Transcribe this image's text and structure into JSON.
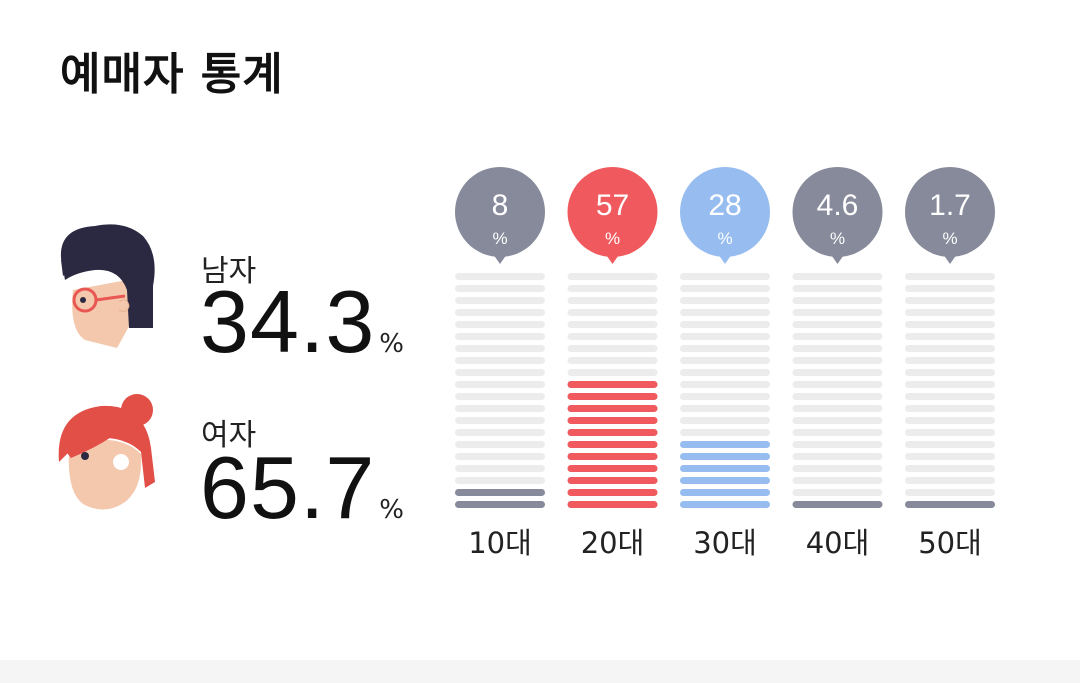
{
  "title": "예매자 통계",
  "gender": {
    "male": {
      "label": "남자",
      "value": "34.3",
      "unit": "%"
    },
    "female": {
      "label": "여자",
      "value": "65.7",
      "unit": "%"
    }
  },
  "chart_data": {
    "type": "bar",
    "categories": [
      "10대",
      "20대",
      "30대",
      "40대",
      "50대"
    ],
    "values": [
      8,
      57,
      28,
      4.6,
      1.7
    ],
    "value_labels": [
      "8",
      "57",
      "28",
      "4.6",
      "1.7"
    ],
    "unit": "%",
    "ylim": [
      0,
      100
    ],
    "colors": {
      "highlight": "#f05a5e",
      "second": "#97bdf0",
      "default": "#868a9a",
      "track": "#ececec"
    }
  }
}
